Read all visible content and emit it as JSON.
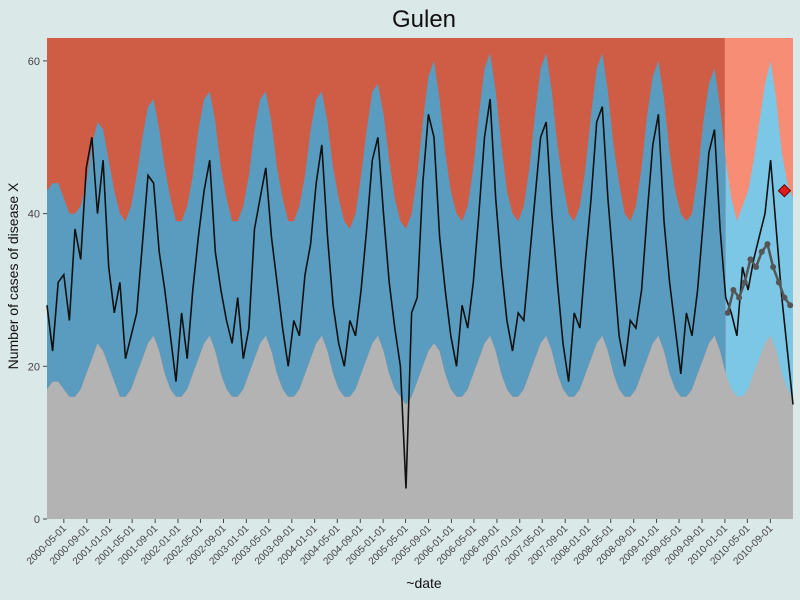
{
  "chart_data": {
    "type": "area",
    "title": "Gulen",
    "xlabel": "~date",
    "ylabel": "Number of cases of disease X",
    "x_range": [
      "2000-02-01",
      "2010-12-31"
    ],
    "ylim": [
      0,
      63
    ],
    "y_ticks": [
      0,
      20,
      40,
      60
    ],
    "x_tick_labels": [
      "2000-05-01",
      "2000-09-01",
      "2001-01-01",
      "2001-05-01",
      "2001-09-01",
      "2002-01-01",
      "2002-05-01",
      "2002-09-01",
      "2003-01-01",
      "2003-05-01",
      "2003-09-01",
      "2004-01-01",
      "2004-05-01",
      "2004-09-01",
      "2005-01-01",
      "2005-05-01",
      "2005-09-01",
      "2006-01-01",
      "2006-05-01",
      "2006-09-01",
      "2007-01-01",
      "2007-05-01",
      "2007-09-01",
      "2008-01-01",
      "2008-05-01",
      "2008-09-01",
      "2009-01-01",
      "2009-05-01",
      "2009-09-01",
      "2010-01-01",
      "2010-05-01",
      "2010-09-01"
    ],
    "forecast_start": "2010-01-01",
    "bands": {
      "lower_threshold": {
        "color": "#b3b3b3",
        "values": [
          17,
          18,
          18,
          17,
          16,
          16,
          17,
          19,
          21,
          23,
          22,
          20,
          18,
          16,
          16,
          17,
          19,
          21,
          23,
          24,
          22,
          19,
          17,
          16,
          16,
          17,
          19,
          21,
          23,
          24,
          22,
          19,
          17,
          16,
          16,
          17,
          19,
          21,
          23,
          24,
          22,
          19,
          17,
          16,
          16,
          17,
          19,
          21,
          23,
          24,
          22,
          19,
          17,
          16,
          16,
          17,
          19,
          21,
          23,
          24,
          22,
          19,
          17,
          16,
          15,
          16,
          18,
          20,
          22,
          23,
          22,
          19,
          17,
          16,
          16,
          17,
          19,
          21,
          23,
          24,
          22,
          19,
          17,
          16,
          16,
          17,
          19,
          21,
          23,
          24,
          22,
          19,
          17,
          16,
          16,
          17,
          19,
          21,
          23,
          24,
          22,
          19,
          17,
          16,
          16,
          17,
          19,
          21,
          23,
          24,
          22,
          19,
          17,
          16,
          16,
          17,
          19,
          21,
          23,
          24,
          22,
          19,
          17,
          16,
          16,
          17,
          19,
          21,
          23,
          24,
          22,
          19,
          17,
          16
        ]
      },
      "upper_threshold": {
        "color": "#5a9cc0",
        "values": [
          43,
          44,
          44,
          42,
          40,
          40,
          41,
          44,
          49,
          52,
          51,
          47,
          43,
          40,
          39,
          41,
          45,
          50,
          54,
          55,
          51,
          46,
          42,
          39,
          39,
          41,
          45,
          51,
          55,
          56,
          52,
          46,
          42,
          39,
          39,
          41,
          45,
          51,
          55,
          56,
          52,
          46,
          42,
          39,
          39,
          41,
          45,
          51,
          55,
          56,
          52,
          46,
          42,
          39,
          38,
          40,
          45,
          51,
          56,
          57,
          53,
          47,
          42,
          39,
          38,
          40,
          45,
          52,
          58,
          60,
          55,
          48,
          43,
          40,
          39,
          41,
          46,
          53,
          59,
          61,
          56,
          49,
          43,
          40,
          39,
          41,
          46,
          53,
          59,
          61,
          56,
          49,
          44,
          40,
          39,
          41,
          46,
          53,
          59,
          61,
          56,
          49,
          44,
          40,
          39,
          41,
          46,
          53,
          58,
          60,
          55,
          48,
          43,
          40,
          39,
          40,
          45,
          52,
          57,
          59,
          54,
          47,
          42,
          39,
          41,
          43,
          47,
          52,
          57,
          60,
          55,
          48,
          44,
          42
        ]
      },
      "alarm": {
        "color": "#cf5c45"
      },
      "forecast_alarm": {
        "color": "#f78d74"
      },
      "forecast_band": {
        "color": "#7cc7e5"
      }
    },
    "series": [
      {
        "values": [
          28,
          22,
          31,
          32,
          26,
          38,
          34,
          46,
          50,
          40,
          47,
          33,
          27,
          31,
          21,
          24,
          27,
          36,
          45,
          44,
          35,
          30,
          24,
          18,
          27,
          21,
          30,
          37,
          43,
          47,
          35,
          30,
          26,
          23,
          29,
          21,
          25,
          38,
          42,
          46,
          37,
          31,
          25,
          20,
          26,
          24,
          32,
          36,
          44,
          49,
          37,
          28,
          23,
          20,
          26,
          24,
          30,
          38,
          47,
          50,
          40,
          31,
          25,
          20,
          4,
          27,
          29,
          44,
          53,
          50,
          37,
          30,
          24,
          20,
          28,
          25,
          31,
          40,
          50,
          55,
          42,
          33,
          26,
          22,
          27,
          26,
          34,
          42,
          50,
          52,
          40,
          31,
          23,
          18,
          27,
          25,
          34,
          42,
          52,
          54,
          42,
          33,
          24,
          20,
          26,
          25,
          30,
          40,
          49,
          53,
          39,
          31,
          25,
          19,
          27,
          24,
          30,
          39,
          48,
          51,
          38,
          29,
          27,
          24,
          33,
          30,
          34,
          37,
          40,
          47,
          38,
          29,
          22,
          15
        ]
      }
    ],
    "observations_2010": {
      "color": "#555555",
      "values": [
        27,
        30,
        29,
        31,
        34,
        33,
        35,
        36,
        33,
        31,
        29,
        28
      ]
    },
    "highlight_point": {
      "date": "2010-11-15",
      "value": 43,
      "color": "#dd1c1c"
    }
  }
}
